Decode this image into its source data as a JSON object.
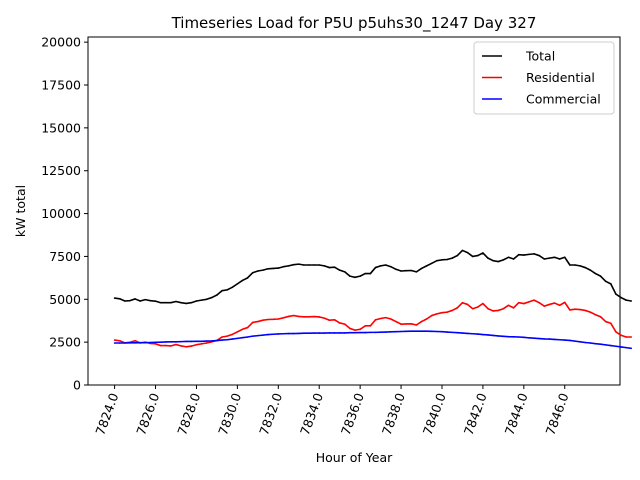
{
  "chart_data": {
    "type": "line",
    "title": "Timeseries Load for P5U p5uhs30_1247  Day 327",
    "xlabel": "Hour of Year",
    "ylabel": "kW total",
    "xlim": [
      7822.7,
      7848.7
    ],
    "ylim": [
      0,
      20300
    ],
    "x_ticks": [
      7824,
      7826,
      7828,
      7830,
      7832,
      7834,
      7836,
      7838,
      7840,
      7842,
      7844,
      7846
    ],
    "x_tick_labels": [
      "7824.0",
      "7826.0",
      "7828.0",
      "7830.0",
      "7832.0",
      "7834.0",
      "7836.0",
      "7838.0",
      "7840.0",
      "7842.0",
      "7844.0",
      "7846.0"
    ],
    "y_ticks": [
      0,
      2500,
      5000,
      7500,
      10000,
      12500,
      15000,
      17500,
      20000
    ],
    "y_tick_labels": [
      "0",
      "2500",
      "5000",
      "7500",
      "10000",
      "12500",
      "15000",
      "17500",
      "20000"
    ],
    "legend_position": "top-right",
    "x_start": 7824,
    "x_step": 0.25,
    "series": [
      {
        "name": "Total",
        "color": "#000000",
        "values": [
          5070,
          5030,
          4900,
          4920,
          5020,
          4900,
          4980,
          4920,
          4890,
          4800,
          4800,
          4800,
          4870,
          4800,
          4760,
          4800,
          4900,
          4950,
          5000,
          5100,
          5250,
          5500,
          5550,
          5700,
          5900,
          6100,
          6250,
          6550,
          6650,
          6700,
          6780,
          6800,
          6820,
          6900,
          6950,
          7020,
          7050,
          7000,
          7000,
          7000,
          7000,
          6950,
          6850,
          6870,
          6700,
          6600,
          6350,
          6280,
          6350,
          6500,
          6500,
          6850,
          6950,
          7000,
          6900,
          6750,
          6650,
          6670,
          6680,
          6600,
          6800,
          6950,
          7100,
          7250,
          7300,
          7320,
          7400,
          7550,
          7850,
          7720,
          7500,
          7550,
          7700,
          7400,
          7250,
          7200,
          7300,
          7450,
          7350,
          7600,
          7580,
          7620,
          7650,
          7550,
          7350,
          7400,
          7450,
          7350,
          7450,
          7000,
          7000,
          6950,
          6850,
          6700,
          6500,
          6350,
          6050,
          5900,
          5300,
          5100,
          4950,
          4900
        ]
      },
      {
        "name": "Residential",
        "color": "#ff0000",
        "values": [
          2620,
          2580,
          2460,
          2490,
          2580,
          2450,
          2500,
          2420,
          2400,
          2300,
          2300,
          2280,
          2360,
          2280,
          2230,
          2270,
          2350,
          2400,
          2450,
          2520,
          2600,
          2800,
          2850,
          2950,
          3100,
          3250,
          3350,
          3650,
          3700,
          3780,
          3820,
          3830,
          3850,
          3920,
          4000,
          4050,
          4000,
          3980,
          3980,
          3990,
          3970,
          3900,
          3780,
          3800,
          3620,
          3550,
          3300,
          3200,
          3250,
          3450,
          3450,
          3800,
          3880,
          3930,
          3850,
          3700,
          3550,
          3560,
          3570,
          3500,
          3700,
          3850,
          4050,
          4150,
          4220,
          4250,
          4350,
          4500,
          4800,
          4700,
          4450,
          4550,
          4750,
          4450,
          4320,
          4350,
          4450,
          4650,
          4500,
          4800,
          4750,
          4850,
          4950,
          4800,
          4600,
          4700,
          4780,
          4650,
          4820,
          4380,
          4420,
          4400,
          4350,
          4250,
          4100,
          3980,
          3700,
          3600,
          3100,
          2900,
          2800,
          2800
        ]
      },
      {
        "name": "Commercial",
        "color": "#0000ff",
        "values": [
          2450,
          2450,
          2450,
          2460,
          2460,
          2470,
          2470,
          2480,
          2490,
          2500,
          2510,
          2520,
          2520,
          2530,
          2540,
          2540,
          2550,
          2550,
          2560,
          2570,
          2590,
          2620,
          2640,
          2680,
          2720,
          2760,
          2800,
          2850,
          2880,
          2910,
          2940,
          2960,
          2980,
          2990,
          3000,
          3000,
          3010,
          3020,
          3020,
          3030,
          3030,
          3030,
          3040,
          3040,
          3040,
          3040,
          3050,
          3050,
          3060,
          3060,
          3070,
          3070,
          3080,
          3090,
          3100,
          3110,
          3120,
          3130,
          3140,
          3140,
          3140,
          3140,
          3130,
          3120,
          3110,
          3090,
          3070,
          3050,
          3030,
          3010,
          2990,
          2970,
          2940,
          2920,
          2890,
          2860,
          2840,
          2820,
          2810,
          2800,
          2780,
          2750,
          2730,
          2710,
          2690,
          2680,
          2660,
          2640,
          2620,
          2600,
          2560,
          2520,
          2480,
          2450,
          2410,
          2380,
          2340,
          2300,
          2260,
          2220,
          2180,
          2140
        ]
      }
    ]
  }
}
